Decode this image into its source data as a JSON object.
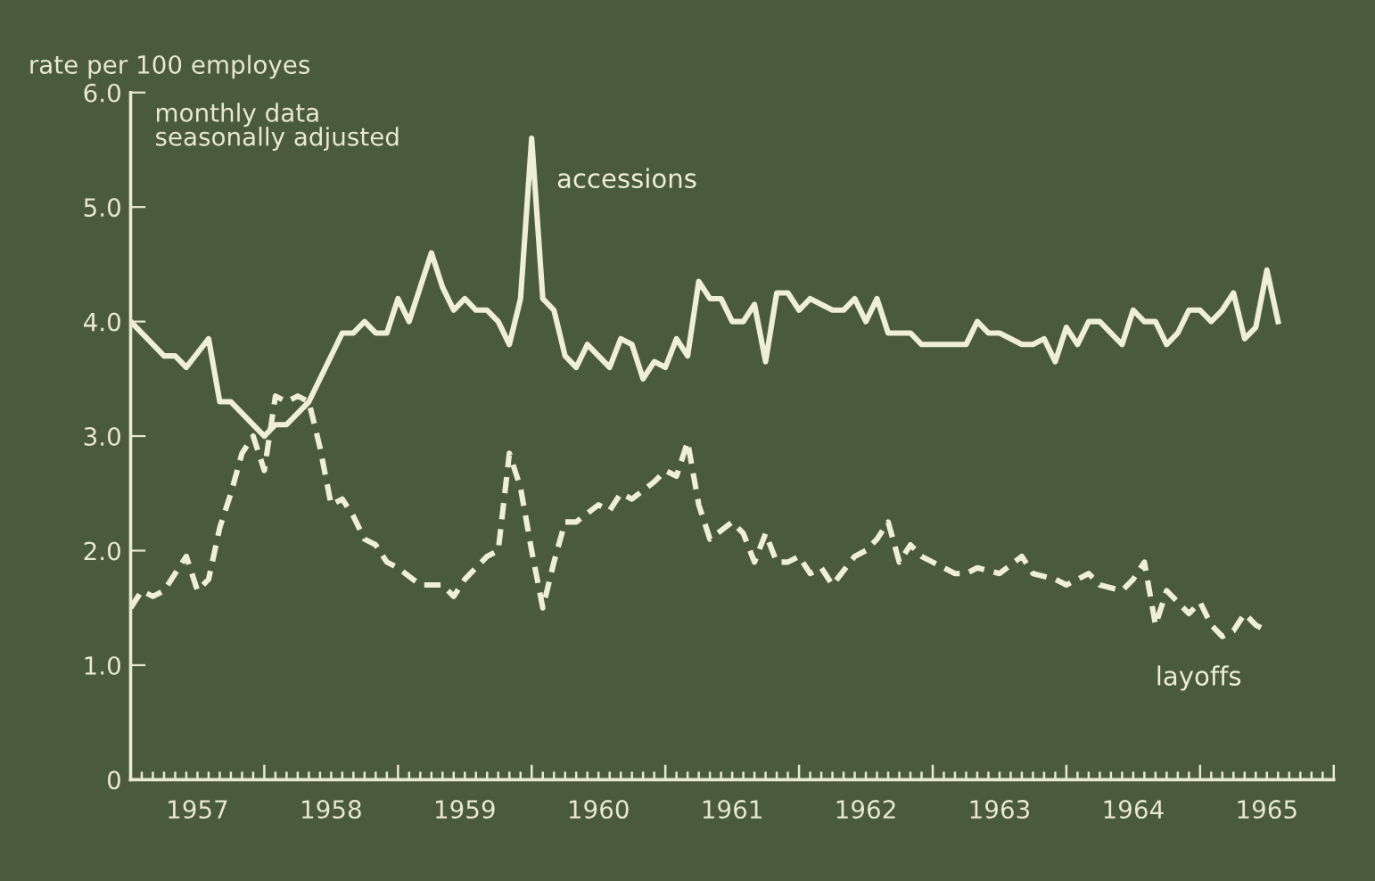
{
  "chart_data": {
    "type": "line",
    "ylabel": "rate per 100 employes",
    "annotations": [
      "monthly data\nseasonally adjusted"
    ],
    "ylim": [
      0,
      6
    ],
    "yticks": [
      0,
      {
        "value": 1,
        "label": "1.0"
      },
      {
        "value": 2,
        "label": "2.0"
      },
      {
        "value": 3,
        "label": "3.0"
      },
      {
        "value": 4,
        "label": "4.0"
      },
      {
        "value": 5,
        "label": "5.0"
      },
      {
        "value": 6,
        "label": "6.0"
      }
    ],
    "xlim": [
      "1957-01",
      "1966-01"
    ],
    "xticks": [
      {
        "value": "1957-01",
        "label": null
      },
      {
        "value": "1957-02",
        "label": null
      },
      {
        "value": "1957-03",
        "label": null
      },
      {
        "value": "1957-04",
        "label": null
      },
      {
        "value": "1957-05",
        "label": null
      },
      {
        "value": "1957-06",
        "label": null
      },
      {
        "value": "1957-07",
        "label": "1957"
      },
      {
        "value": "1957-08",
        "label": null
      },
      {
        "value": "1957-09",
        "label": null
      },
      {
        "value": "1957-10",
        "label": null
      },
      {
        "value": "1957-11",
        "label": null
      },
      {
        "value": "1957-12",
        "label": null
      },
      {
        "value": "1958-01",
        "label": null
      },
      {
        "value": "1958-02",
        "label": null
      },
      {
        "value": "1958-03",
        "label": null
      },
      {
        "value": "1958-04",
        "label": null
      },
      {
        "value": "1958-05",
        "label": null
      },
      {
        "value": "1958-06",
        "label": null
      },
      {
        "value": "1958-07",
        "label": "1958"
      },
      {
        "value": "1958-08",
        "label": null
      },
      {
        "value": "1958-09",
        "label": null
      },
      {
        "value": "1958-10",
        "label": null
      },
      {
        "value": "1958-11",
        "label": null
      },
      {
        "value": "1958-12",
        "label": null
      },
      {
        "value": "1959-01",
        "label": null
      },
      {
        "value": "1959-02",
        "label": null
      },
      {
        "value": "1959-03",
        "label": null
      },
      {
        "value": "1959-04",
        "label": null
      },
      {
        "value": "1959-05",
        "label": null
      },
      {
        "value": "1959-06",
        "label": null
      },
      {
        "value": "1959-07",
        "label": "1959"
      },
      {
        "value": "1959-08",
        "label": null
      },
      {
        "value": "1959-09",
        "label": null
      },
      {
        "value": "1959-10",
        "label": null
      },
      {
        "value": "1959-11",
        "label": null
      },
      {
        "value": "1959-12",
        "label": null
      },
      {
        "value": "1960-01",
        "label": null
      },
      {
        "value": "1960-02",
        "label": null
      },
      {
        "value": "1960-03",
        "label": null
      },
      {
        "value": "1960-04",
        "label": null
      },
      {
        "value": "1960-05",
        "label": null
      },
      {
        "value": "1960-06",
        "label": null
      },
      {
        "value": "1960-07",
        "label": "1960"
      },
      {
        "value": "1960-08",
        "label": null
      },
      {
        "value": "1960-09",
        "label": null
      },
      {
        "value": "1960-10",
        "label": null
      },
      {
        "value": "1960-11",
        "label": null
      },
      {
        "value": "1960-12",
        "label": null
      },
      {
        "value": "1961-01",
        "label": null
      },
      {
        "value": "1961-02",
        "label": null
      },
      {
        "value": "1961-03",
        "label": null
      },
      {
        "value": "1961-04",
        "label": null
      },
      {
        "value": "1961-05",
        "label": null
      },
      {
        "value": "1961-06",
        "label": null
      },
      {
        "value": "1961-07",
        "label": "1961"
      },
      {
        "value": "1961-08",
        "label": null
      },
      {
        "value": "1961-09",
        "label": null
      },
      {
        "value": "1961-10",
        "label": null
      },
      {
        "value": "1961-11",
        "label": null
      },
      {
        "value": "1961-12",
        "label": null
      },
      {
        "value": "1962-01",
        "label": null
      },
      {
        "value": "1962-02",
        "label": null
      },
      {
        "value": "1962-03",
        "label": null
      },
      {
        "value": "1962-04",
        "label": null
      },
      {
        "value": "1962-05",
        "label": null
      },
      {
        "value": "1962-06",
        "label": null
      },
      {
        "value": "1962-07",
        "label": "1962"
      },
      {
        "value": "1962-08",
        "label": null
      },
      {
        "value": "1962-09",
        "label": null
      },
      {
        "value": "1962-10",
        "label": null
      },
      {
        "value": "1962-11",
        "label": null
      },
      {
        "value": "1962-12",
        "label": null
      },
      {
        "value": "1963-01",
        "label": null
      },
      {
        "value": "1963-02",
        "label": null
      },
      {
        "value": "1963-03",
        "label": null
      },
      {
        "value": "1963-04",
        "label": null
      },
      {
        "value": "1963-05",
        "label": null
      },
      {
        "value": "1963-06",
        "label": null
      },
      {
        "value": "1963-07",
        "label": "1963"
      },
      {
        "value": "1963-08",
        "label": null
      },
      {
        "value": "1963-09",
        "label": null
      },
      {
        "value": "1963-10",
        "label": null
      },
      {
        "value": "1963-11",
        "label": null
      },
      {
        "value": "1963-12",
        "label": null
      },
      {
        "value": "1964-01",
        "label": null
      },
      {
        "value": "1964-02",
        "label": null
      },
      {
        "value": "1964-03",
        "label": null
      },
      {
        "value": "1964-04",
        "label": null
      },
      {
        "value": "1964-05",
        "label": null
      },
      {
        "value": "1964-06",
        "label": null
      },
      {
        "value": "1964-07",
        "label": "1964"
      },
      {
        "value": "1964-08",
        "label": null
      },
      {
        "value": "1964-09",
        "label": null
      },
      {
        "value": "1964-10",
        "label": null
      },
      {
        "value": "1964-11",
        "label": null
      },
      {
        "value": "1964-12",
        "label": null
      },
      {
        "value": "1965-01",
        "label": null
      },
      {
        "value": "1965-02",
        "label": null
      },
      {
        "value": "1965-03",
        "label": null
      },
      {
        "value": "1965-04",
        "label": null
      },
      {
        "value": "1965-05",
        "label": null
      },
      {
        "value": "1965-06",
        "label": null
      },
      {
        "value": "1965-07",
        "label": "1965"
      },
      {
        "value": "1965-08",
        "label": null
      },
      {
        "value": "1965-09",
        "label": null
      },
      {
        "value": "1965-10",
        "label": null
      },
      {
        "value": "1965-11",
        "label": null
      },
      {
        "value": "1965-12",
        "label": null
      },
      {
        "value": "1966-01",
        "label": null
      }
    ],
    "grid": false,
    "legend": false,
    "marker": "none",
    "series": [
      {
        "name": "accessions",
        "color": "#efeed6",
        "line_style": "solid",
        "x": [
          "1957-01",
          "1957-02",
          "1957-04",
          "1957-05",
          "1957-06",
          "1957-08",
          "1957-09",
          "1957-10",
          "1958-01",
          "1958-02",
          "1958-03",
          "1958-05",
          "1958-08",
          "1958-09",
          "1958-10",
          "1958-11",
          "1958-12",
          "1959-01",
          "1959-02",
          "1959-04",
          "1959-05",
          "1959-06",
          "1959-07",
          "1959-08",
          "1959-09",
          "1959-10",
          "1959-11",
          "1959-12",
          "1960-01",
          "1960-02",
          "1960-03",
          "1960-04",
          "1960-05",
          "1960-06",
          "1960-08",
          "1960-09",
          "1960-10",
          "1960-11",
          "1960-12",
          "1961-01",
          "1961-02",
          "1961-03",
          "1961-04",
          "1961-05",
          "1961-06",
          "1961-07",
          "1961-08",
          "1961-09",
          "1961-10",
          "1961-11",
          "1961-12",
          "1962-01",
          "1962-02",
          "1962-04",
          "1962-05",
          "1962-06",
          "1962-07",
          "1962-08",
          "1962-09",
          "1962-11",
          "1962-12",
          "1963-04",
          "1963-05",
          "1963-06",
          "1963-07",
          "1963-09",
          "1963-10",
          "1963-11",
          "1963-12",
          "1964-01",
          "1964-02",
          "1964-03",
          "1964-04",
          "1964-06",
          "1964-07",
          "1964-08",
          "1964-09",
          "1964-10",
          "1964-11",
          "1964-12",
          "1965-01",
          "1965-02",
          "1965-03",
          "1965-04",
          "1965-05",
          "1965-06",
          "1965-07",
          "1965-08"
        ],
        "values": [
          4.0,
          3.9,
          3.7,
          3.7,
          3.6,
          3.85,
          3.3,
          3.3,
          3.0,
          3.1,
          3.1,
          3.3,
          3.9,
          3.9,
          4.0,
          3.9,
          3.9,
          4.2,
          4.0,
          4.6,
          4.3,
          4.1,
          4.2,
          4.1,
          4.1,
          4.0,
          3.8,
          4.2,
          5.6,
          4.2,
          4.1,
          3.7,
          3.6,
          3.8,
          3.6,
          3.85,
          3.8,
          3.5,
          3.65,
          3.6,
          3.85,
          3.7,
          4.35,
          4.2,
          4.2,
          4.0,
          4.0,
          4.15,
          3.65,
          4.25,
          4.25,
          4.1,
          4.2,
          4.1,
          4.1,
          4.2,
          4.0,
          4.2,
          3.9,
          3.9,
          3.8,
          3.8,
          4.0,
          3.9,
          3.9,
          3.8,
          3.8,
          3.85,
          3.65,
          3.95,
          3.8,
          4.0,
          4.0,
          3.8,
          4.1,
          4.0,
          4.0,
          3.8,
          3.9,
          4.1,
          4.1,
          4.0,
          4.1,
          4.25,
          3.85,
          3.95,
          4.45,
          4.0
        ]
      },
      {
        "name": "layoffs",
        "color": "#efeed6",
        "line_style": "dashed",
        "x": [
          "1957-01",
          "1957-02",
          "1957-03",
          "1957-04",
          "1957-06",
          "1957-07",
          "1957-08",
          "1957-09",
          "1957-10",
          "1957-11",
          "1957-12",
          "1958-01",
          "1958-02",
          "1958-03",
          "1958-04",
          "1958-05",
          "1958-06",
          "1958-07",
          "1958-08",
          "1958-09",
          "1958-10",
          "1958-11",
          "1958-12",
          "1959-01",
          "1959-03",
          "1959-04",
          "1959-05",
          "1959-06",
          "1959-07",
          "1959-09",
          "1959-10",
          "1959-11",
          "1959-12",
          "1960-01",
          "1960-02",
          "1960-03",
          "1960-04",
          "1960-05",
          "1960-07",
          "1960-08",
          "1960-09",
          "1960-10",
          "1960-12",
          "1961-01",
          "1961-02",
          "1961-03",
          "1961-04",
          "1961-05",
          "1961-07",
          "1961-08",
          "1961-09",
          "1961-10",
          "1961-11",
          "1961-12",
          "1962-01",
          "1962-02",
          "1962-03",
          "1962-04",
          "1962-06",
          "1962-07",
          "1962-08",
          "1962-09",
          "1962-10",
          "1962-11",
          "1962-12",
          "1963-01",
          "1963-03",
          "1963-04",
          "1963-05",
          "1963-07",
          "1963-09",
          "1963-10",
          "1963-12",
          "1964-01",
          "1964-03",
          "1964-04",
          "1964-06",
          "1964-07",
          "1964-08",
          "1964-09",
          "1964-10",
          "1964-12",
          "1965-01",
          "1965-02",
          "1965-03",
          "1965-04",
          "1965-05",
          "1965-06",
          "1965-07"
        ],
        "values": [
          1.5,
          1.65,
          1.6,
          1.65,
          1.95,
          1.65,
          1.75,
          2.2,
          2.5,
          2.85,
          3.0,
          2.7,
          3.35,
          3.3,
          3.35,
          3.3,
          2.9,
          2.4,
          2.45,
          2.3,
          2.1,
          2.05,
          1.9,
          1.85,
          1.7,
          1.7,
          1.7,
          1.6,
          1.75,
          1.95,
          2.0,
          2.85,
          2.55,
          2.0,
          1.5,
          1.9,
          2.25,
          2.25,
          2.4,
          2.35,
          2.5,
          2.45,
          2.6,
          2.7,
          2.65,
          2.95,
          2.4,
          2.1,
          2.25,
          2.15,
          1.9,
          2.15,
          1.9,
          1.9,
          1.95,
          1.8,
          1.85,
          1.7,
          1.95,
          2.0,
          2.1,
          2.25,
          1.9,
          2.05,
          1.95,
          1.9,
          1.8,
          1.8,
          1.85,
          1.8,
          1.95,
          1.8,
          1.75,
          1.7,
          1.8,
          1.7,
          1.65,
          1.75,
          1.9,
          1.35,
          1.65,
          1.45,
          1.55,
          1.35,
          1.25,
          1.3,
          1.45,
          1.35,
          1.3
        ]
      }
    ]
  }
}
